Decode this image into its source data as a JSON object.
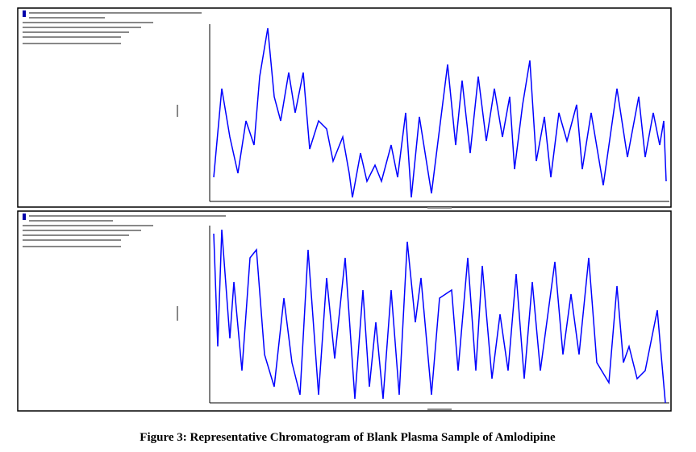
{
  "chart_data": [
    {
      "type": "line",
      "color": "#0000ff",
      "xlim": [
        0,
        570
      ],
      "ylim": [
        0,
        220
      ],
      "x": [
        5,
        15,
        25,
        35,
        45,
        55,
        62,
        72,
        80,
        88,
        98,
        106,
        116,
        124,
        135,
        145,
        153,
        165,
        173,
        177,
        187,
        195,
        205,
        213,
        225,
        233,
        243,
        250,
        260,
        275,
        285,
        295,
        305,
        313,
        323,
        333,
        343,
        353,
        363,
        372,
        378,
        388,
        397,
        405,
        415,
        423,
        433,
        443,
        455,
        462,
        473,
        488,
        505,
        518,
        532,
        540,
        550,
        558,
        563,
        566
      ],
      "values": [
        30,
        140,
        80,
        35,
        100,
        70,
        155,
        215,
        130,
        100,
        160,
        110,
        160,
        65,
        100,
        90,
        50,
        80,
        35,
        5,
        60,
        25,
        45,
        25,
        70,
        30,
        110,
        5,
        105,
        10,
        90,
        170,
        70,
        150,
        60,
        155,
        75,
        140,
        80,
        130,
        40,
        120,
        175,
        50,
        105,
        30,
        110,
        75,
        120,
        40,
        110,
        20,
        140,
        55,
        130,
        55,
        110,
        70,
        100,
        25
      ]
    },
    {
      "type": "line",
      "color": "#0000ff",
      "xlim": [
        0,
        570
      ],
      "ylim": [
        0,
        220
      ],
      "x": [
        5,
        10,
        15,
        25,
        30,
        40,
        50,
        58,
        68,
        80,
        92,
        102,
        112,
        122,
        135,
        145,
        155,
        168,
        180,
        190,
        198,
        206,
        215,
        225,
        235,
        245,
        255,
        262,
        275,
        285,
        300,
        308,
        320,
        330,
        338,
        350,
        360,
        370,
        380,
        390,
        400,
        410,
        428,
        438,
        448,
        458,
        470,
        480,
        495,
        505,
        513,
        520,
        530,
        540,
        555,
        565
      ],
      "values": [
        210,
        70,
        215,
        80,
        150,
        40,
        180,
        190,
        60,
        20,
        130,
        50,
        10,
        190,
        10,
        155,
        55,
        180,
        5,
        140,
        20,
        100,
        5,
        140,
        10,
        200,
        100,
        155,
        10,
        130,
        140,
        40,
        180,
        40,
        170,
        30,
        110,
        40,
        160,
        30,
        150,
        40,
        175,
        60,
        135,
        60,
        180,
        50,
        25,
        145,
        50,
        70,
        30,
        40,
        115,
        0
      ]
    }
  ],
  "caption": "Figure 3: Representative Chromatogram of Blank Plasma Sample of Amlodipine"
}
